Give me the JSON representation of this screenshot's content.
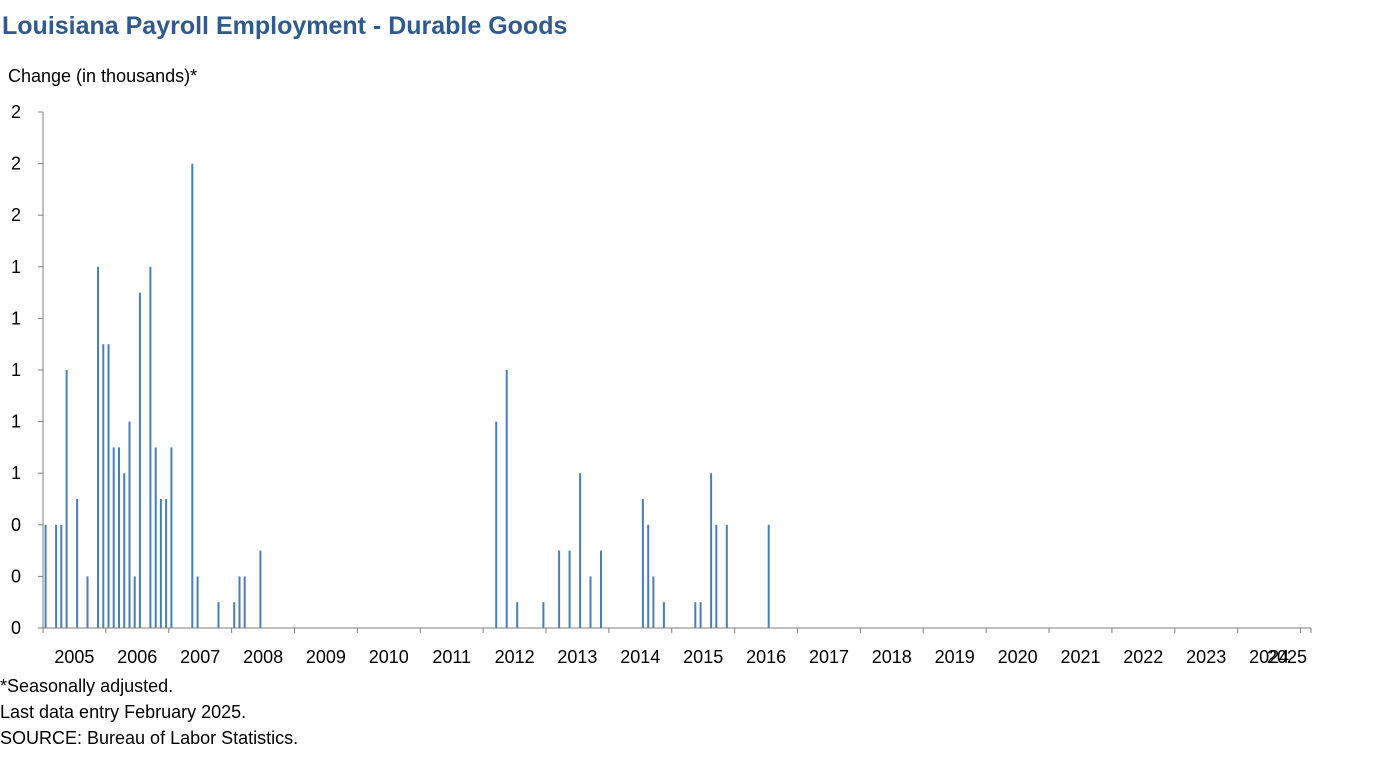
{
  "title": "Louisiana Payroll Employment - Durable Goods",
  "y_axis_caption": "Change (in thousands)*",
  "notes": [
    "*Seasonally adjusted.",
    "Last data entry February 2025.",
    "SOURCE: Bureau of Labor Statistics."
  ],
  "colors": {
    "title": "#2E5A8C",
    "bars": "#4A7EBB",
    "axis": "#7F7F7F"
  },
  "chart_data": {
    "type": "bar",
    "ylim": [
      0,
      2
    ],
    "y_ticks": [
      0,
      0.2,
      0.4,
      0.6,
      0.8,
      1.0,
      1.2,
      1.4,
      1.6,
      1.8,
      2.0
    ],
    "y_tick_labels": [
      "0",
      "0",
      "0",
      "1",
      "1",
      "1",
      "1",
      "1",
      "2",
      "2",
      "2"
    ],
    "x_tick_labels": [
      "2005",
      "2006",
      "2007",
      "2008",
      "2009",
      "2010",
      "2011",
      "2012",
      "2013",
      "2014",
      "2015",
      "2016",
      "2017",
      "2018",
      "2019",
      "2020",
      "2021",
      "2022",
      "2023",
      "2024",
      "2025"
    ],
    "x_start": "2005-01",
    "grid": false,
    "legend": "none",
    "series": [
      {
        "values": [
          0.4,
          0.0,
          0.4,
          0.4,
          1.0,
          0.0,
          0.5,
          0.0,
          0.2,
          0.0,
          1.4,
          1.1,
          1.1,
          0.7,
          0.7,
          0.6,
          0.8,
          0.2,
          1.3,
          0.0,
          1.4,
          0.7,
          0.5,
          0.5,
          0.7,
          0.0,
          0.0,
          0.0,
          1.8,
          0.2,
          0.0,
          0.0,
          0.0,
          0.1,
          0.0,
          0.0,
          0.1,
          0.2,
          0.2,
          0.0,
          0.0,
          0.3,
          0.0,
          0.0,
          0.0,
          0.0,
          0.0,
          0.0,
          0.0,
          0.0,
          0.0,
          0.0,
          0.0,
          0.0,
          0.0,
          0.0,
          0.0,
          0.0,
          0.0,
          0.0,
          0.0,
          0.0,
          0.0,
          0.0,
          0.0,
          0.0,
          0.0,
          0.0,
          0.0,
          0.0,
          0.0,
          0.0,
          0.0,
          0.0,
          0.0,
          0.0,
          0.0,
          0.0,
          0.0,
          0.0,
          0.0,
          0.0,
          0.0,
          0.0,
          0.0,
          0.0,
          0.8,
          0.0,
          1.0,
          0.0,
          0.1,
          0.0,
          0.0,
          0.0,
          0.0,
          0.1,
          0.0,
          0.0,
          0.3,
          0.0,
          0.3,
          0.0,
          0.6,
          0.0,
          0.2,
          0.0,
          0.3,
          0.0,
          0.0,
          0.0,
          0.0,
          0.0,
          0.0,
          0.0,
          0.5,
          0.4,
          0.2,
          0.0,
          0.1,
          0.0,
          0.0,
          0.0,
          0.0,
          0.0,
          0.1,
          0.1,
          0.0,
          0.6,
          0.4,
          0.0,
          0.4,
          0.0,
          0.0,
          0.0,
          0.0,
          0.0,
          0.0,
          0.0,
          0.4,
          0.0,
          0.0,
          0.0,
          0.0,
          0.0,
          0.0,
          0.0,
          0.0,
          0.0,
          0.0,
          0.0,
          0.0,
          0.0,
          0.0,
          0.0,
          0.0,
          0.0,
          0.0,
          0.0,
          0.0,
          0.0,
          0.0,
          0.0,
          0.0,
          0.0,
          0.0,
          0.0,
          0.0,
          0.0,
          0.0,
          0.0,
          0.0,
          0.0,
          0.0,
          0.0,
          0.0,
          0.0,
          0.0,
          0.0,
          0.0,
          0.0,
          0.0,
          0.0,
          0.0,
          0.0,
          0.0,
          0.0,
          0.0,
          0.0,
          0.0,
          0.0,
          0.0,
          0.0,
          0.0,
          0.0,
          0.0,
          0.0,
          0.0,
          0.0,
          0.0,
          0.0
        ]
      }
    ]
  }
}
